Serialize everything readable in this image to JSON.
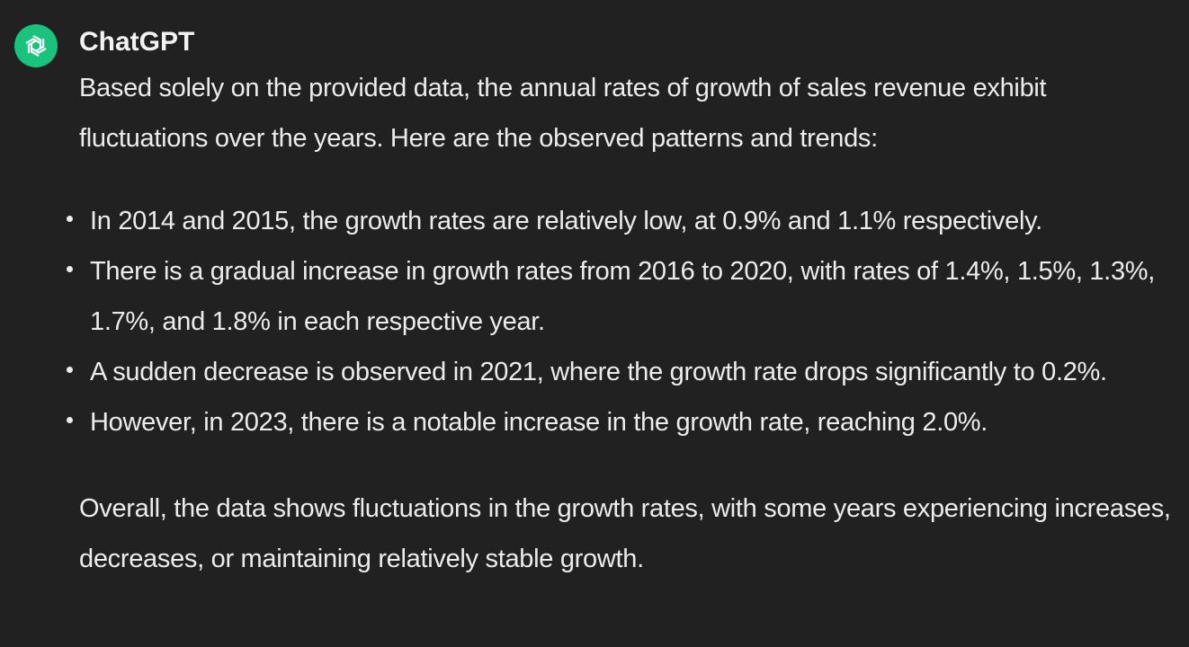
{
  "message": {
    "author": "ChatGPT",
    "avatar_icon": "openai-logo-icon",
    "avatar_color": "#19c37d",
    "intro": "Based solely on the provided data, the annual rates of growth of sales revenue exhibit fluctuations over the years. Here are the observed patterns and trends:",
    "bullets": [
      "In 2014 and 2015, the growth rates are relatively low, at 0.9% and 1.1% respectively.",
      "There is a gradual increase in growth rates from 2016 to 2020, with rates of 1.4%, 1.5%, 1.3%, 1.7%, and 1.8% in each respective year.",
      "A sudden decrease is observed in 2021, where the growth rate drops significantly to 0.2%.",
      "However, in 2023, there is a notable increase in the growth rate, reaching 2.0%."
    ],
    "outro": "Overall, the data shows fluctuations in the growth rates, with some years experiencing increases, decreases, or maintaining relatively stable growth."
  }
}
